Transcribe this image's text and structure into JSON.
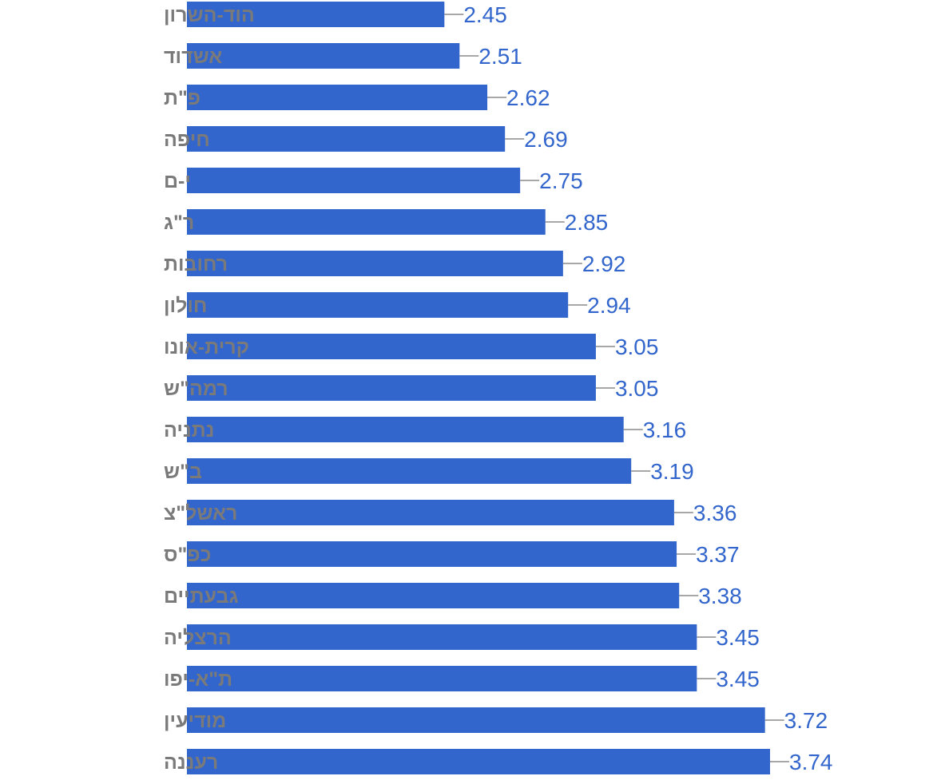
{
  "chart_data": {
    "type": "bar",
    "orientation": "horizontal",
    "categories": [
      "הוד-השרון",
      "אשדוד",
      "פ\"ת",
      "חיפה",
      "י-ם",
      "ר\"ג",
      "רחובות",
      "חולון",
      "קרית-אונו",
      "רמה\"ש",
      "נתניה",
      "ב\"ש",
      "ראשל\"צ",
      "כפ\"ס",
      "גבעתיים",
      "הרצליה",
      "ת\"א-יפו",
      "מודיעין",
      "רעננה"
    ],
    "values": [
      2.45,
      2.51,
      2.62,
      2.69,
      2.75,
      2.85,
      2.92,
      2.94,
      3.05,
      3.05,
      3.16,
      3.19,
      3.36,
      3.37,
      3.38,
      3.45,
      3.45,
      3.72,
      3.74
    ],
    "value_labels": [
      "2.45",
      "2.51",
      "2.62",
      "2.69",
      "2.75",
      "2.85",
      "2.92",
      "2.94",
      "3.05",
      "3.05",
      "3.16",
      "3.19",
      "3.36",
      "3.37",
      "3.38",
      "3.45",
      "3.45",
      "3.72",
      "3.74"
    ],
    "xlim": [
      1.43,
      3.74
    ],
    "grid": false,
    "legend": "none",
    "bar_color": "#3366cc",
    "label_color": "#7a7a7a",
    "value_label_color": "#3366cc"
  }
}
